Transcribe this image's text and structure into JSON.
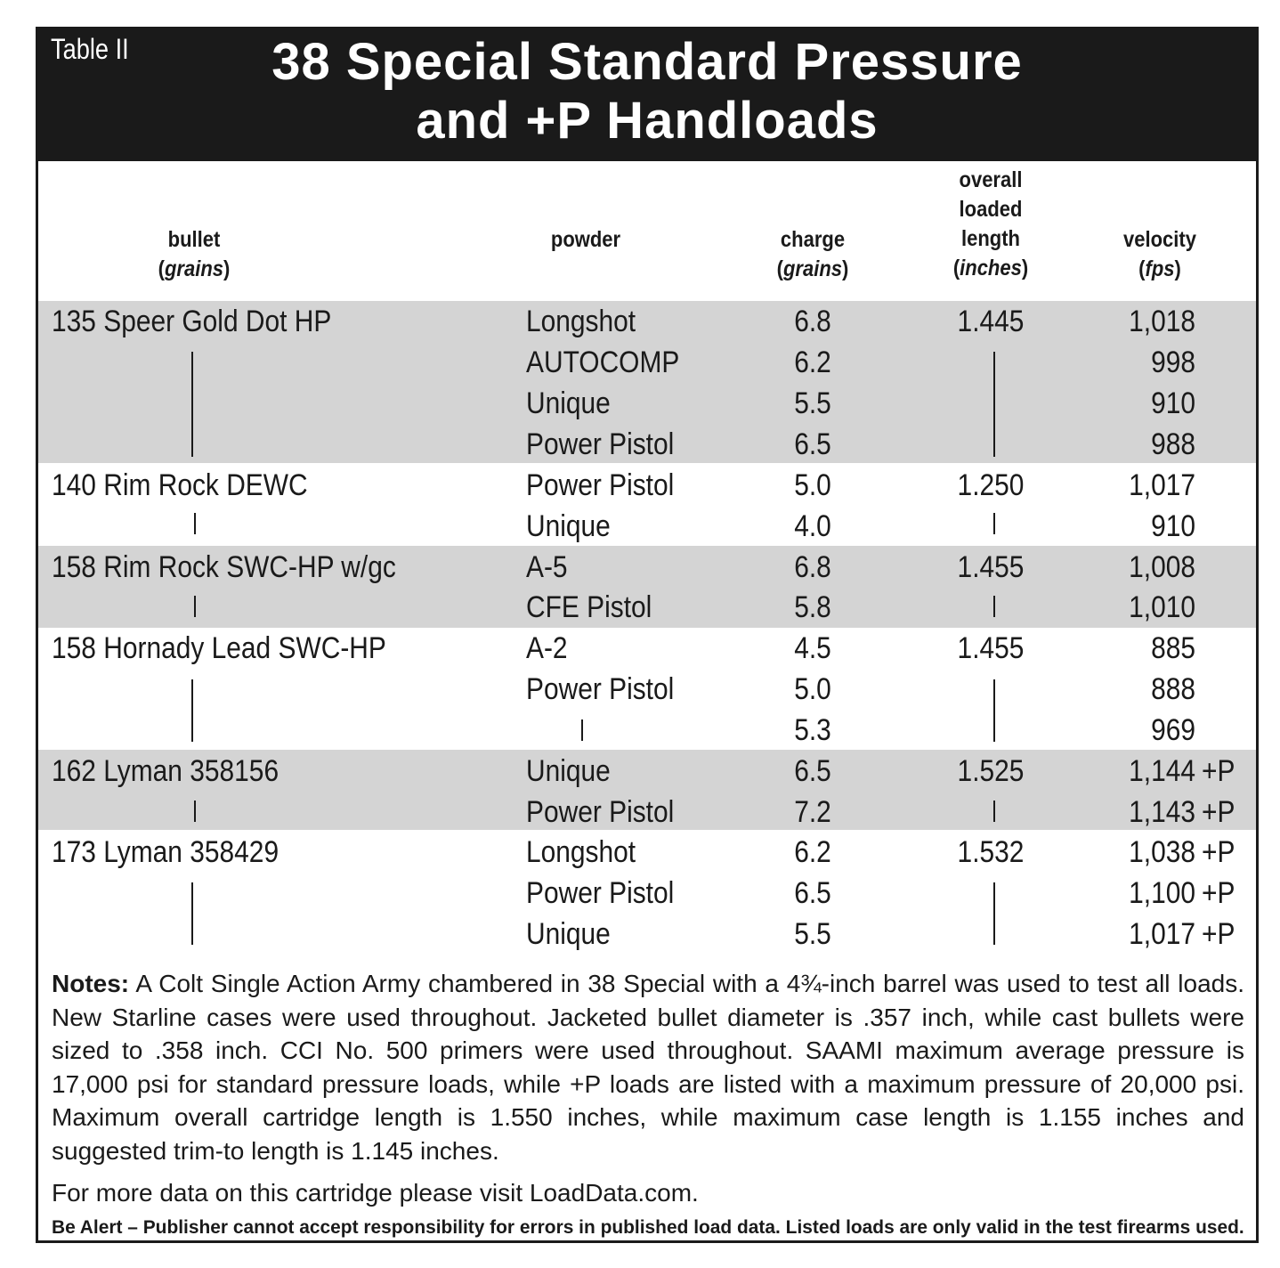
{
  "table_label": "Table II",
  "title_line1": "38 Special Standard Pressure",
  "title_line2": "and +P Handloads",
  "columns": {
    "bullet": {
      "line1": "bullet",
      "unit": "grains"
    },
    "powder": {
      "line1": "powder"
    },
    "charge": {
      "line1": "charge",
      "unit": "grains"
    },
    "oal": {
      "line1": "overall",
      "line2": "loaded",
      "line3": "length",
      "unit": "inches"
    },
    "velocity": {
      "line1": "velocity",
      "unit": "fps"
    }
  },
  "rows": [
    {
      "bullet": "135 Speer Gold Dot HP",
      "powder": "Longshot",
      "charge": "6.8",
      "oal": "1.445",
      "velocity": "1,018",
      "plus": ""
    },
    {
      "bullet": "",
      "powder": "AUTOCOMP",
      "charge": "6.2",
      "oal": "",
      "velocity": "998",
      "plus": ""
    },
    {
      "bullet": "",
      "powder": "Unique",
      "charge": "5.5",
      "oal": "",
      "velocity": "910",
      "plus": ""
    },
    {
      "bullet": "",
      "powder": "Power Pistol",
      "charge": "6.5",
      "oal": "",
      "velocity": "988",
      "plus": ""
    },
    {
      "bullet": "140 Rim Rock DEWC",
      "powder": "Power Pistol",
      "charge": "5.0",
      "oal": "1.250",
      "velocity": "1,017",
      "plus": ""
    },
    {
      "bullet": "",
      "powder": "Unique",
      "charge": "4.0",
      "oal": "",
      "velocity": "910",
      "plus": ""
    },
    {
      "bullet": "158 Rim Rock SWC-HP w/gc",
      "powder": "A-5",
      "charge": "6.8",
      "oal": "1.455",
      "velocity": "1,008",
      "plus": ""
    },
    {
      "bullet": "",
      "powder": "CFE Pistol",
      "charge": "5.8",
      "oal": "",
      "velocity": "1,010",
      "plus": ""
    },
    {
      "bullet": "158 Hornady Lead SWC-HP",
      "powder": "A-2",
      "charge": "4.5",
      "oal": "1.455",
      "velocity": "885",
      "plus": ""
    },
    {
      "bullet": "",
      "powder": "Power Pistol",
      "charge": "5.0",
      "oal": "",
      "velocity": "888",
      "plus": ""
    },
    {
      "bullet": "",
      "powder": "",
      "charge": "5.3",
      "oal": "",
      "velocity": "969",
      "plus": ""
    },
    {
      "bullet": "162 Lyman 358156",
      "powder": "Unique",
      "charge": "6.5",
      "oal": "1.525",
      "velocity": "1,144",
      "plus": "+P"
    },
    {
      "bullet": "",
      "powder": "Power Pistol",
      "charge": "7.2",
      "oal": "",
      "velocity": "1,143",
      "plus": "+P"
    },
    {
      "bullet": "173 Lyman 358429",
      "powder": "Longshot",
      "charge": "6.2",
      "oal": "1.532",
      "velocity": "1,038",
      "plus": "+P"
    },
    {
      "bullet": "",
      "powder": "Power Pistol",
      "charge": "6.5",
      "oal": "",
      "velocity": "1,100",
      "plus": "+P"
    },
    {
      "bullet": "",
      "powder": "Unique",
      "charge": "5.5",
      "oal": "",
      "velocity": "1,017",
      "plus": "+P"
    }
  ],
  "notes_label": "Notes:",
  "notes_text": " A Colt Single Action Army chambered in 38 Special with a 4¾-inch barrel was used to test all loads. New Starline cases were used throughout. Jacketed bullet diameter is .357 inch, while cast bullets were sized to .358 inch. CCI No. 500 primers were used throughout. SAAMI maximum average pressure is 17,000 psi for standard pressure loads, while +P loads are listed with a maximum pressure of 20,000 psi. Maximum overall cartridge length is 1.550 inches, while maximum case length is 1.155 inches and suggested trim-to length is 1.145 inches.",
  "more_data": "For more data on this cartridge please visit LoadData.com.",
  "alert": "Be Alert – Publisher cannot accept responsibility for errors in published load data. Listed loads are only valid in the test firearms used.",
  "colors": {
    "header_bg": "#1a1a1a",
    "band": "#d4d4d4",
    "text": "#1a1a1a"
  }
}
